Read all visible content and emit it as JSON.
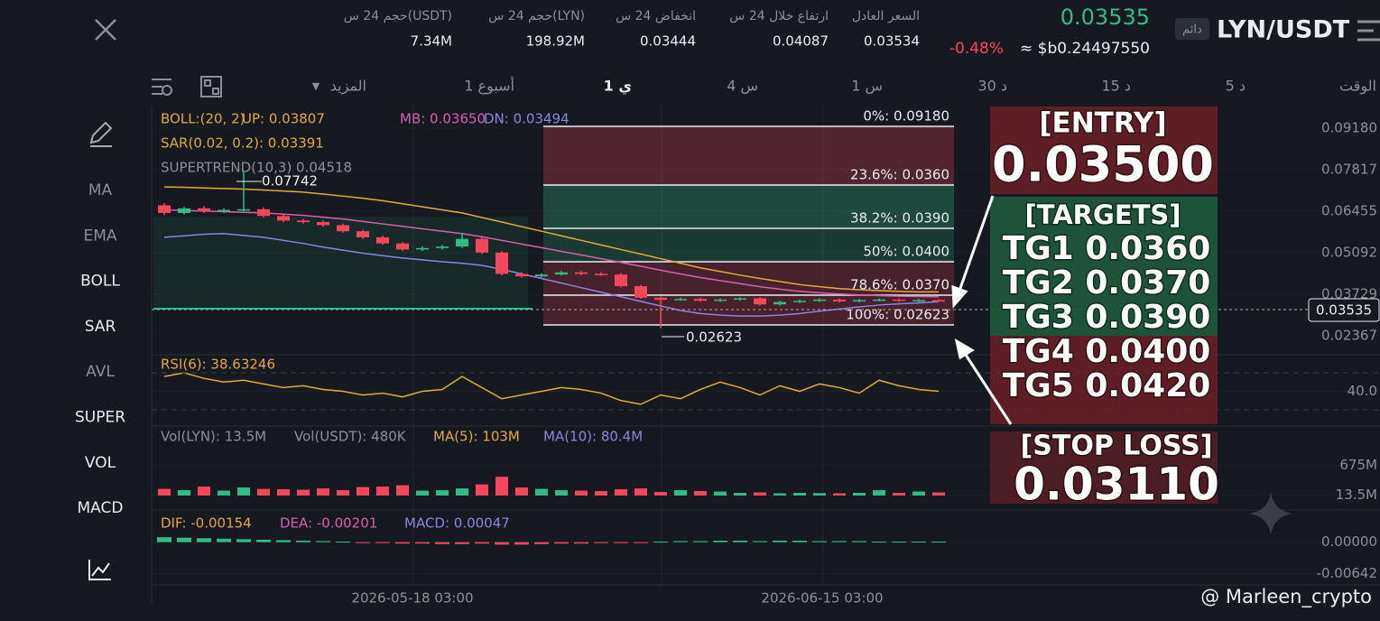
{
  "header": {
    "pair": "LYN/USDT",
    "tag": "دائم",
    "price": "0.03535",
    "change": "-0.48%",
    "usd": "≈ $b0.24497550",
    "stats": [
      {
        "label": "السعر العادل",
        "value": "0.03534"
      },
      {
        "label": "ارتفاع خلال 24 س",
        "value": "0.04087"
      },
      {
        "label": "انخفاض 24 س",
        "value": "0.03444"
      },
      {
        "label": "حجم 24 س(LYN)",
        "value": "198.92M"
      },
      {
        "label": "حجم 24 س(USDT)",
        "value": "7.34M"
      }
    ]
  },
  "timeframes": [
    "الوقت",
    "5 د",
    "15 د",
    "30 د",
    "1 س",
    "4 س",
    "1 ي",
    "1 أسبوع",
    "المزيد"
  ],
  "sidebar": [
    "MA",
    "EMA",
    "BOLL",
    "SAR",
    "AVL",
    "SUPER",
    "VOL",
    "MACD"
  ],
  "chart_data": {
    "type": "candlestick",
    "legend": {
      "boll": "BOLL:(20, 2)",
      "up": "UP: 0.03807",
      "mb": "MB: 0.03650",
      "dn": "DN: 0.03494",
      "sar": "SAR(0.02, 0.2): 0.03391",
      "supertrend": "SUPERTREND(10,3) 0.04518"
    },
    "up_color": "#2ebd85",
    "down_color": "#f6465d",
    "open": [
      0.0665,
      0.064,
      0.0655,
      0.0645,
      0.065,
      0.0652,
      0.063,
      0.0615,
      0.061,
      0.06,
      0.058,
      0.056,
      0.054,
      0.052,
      0.0525,
      0.053,
      0.0555,
      0.051,
      0.044,
      0.0432,
      0.0438,
      0.0445,
      0.044,
      0.0438,
      0.04,
      0.0362,
      0.0355,
      0.0358,
      0.0352,
      0.0356,
      0.036,
      0.034,
      0.0348,
      0.0352,
      0.0356,
      0.035,
      0.0354,
      0.0356,
      0.0352,
      0.0354
    ],
    "high": [
      0.0672,
      0.066,
      0.0662,
      0.0655,
      0.0774,
      0.0658,
      0.0635,
      0.062,
      0.0615,
      0.0605,
      0.0585,
      0.0565,
      0.0545,
      0.053,
      0.0535,
      0.0575,
      0.056,
      0.0515,
      0.0445,
      0.0442,
      0.045,
      0.045,
      0.0445,
      0.0442,
      0.0404,
      0.0366,
      0.0362,
      0.0362,
      0.036,
      0.0364,
      0.0364,
      0.0352,
      0.0356,
      0.036,
      0.036,
      0.0358,
      0.036,
      0.036,
      0.0358,
      0.0358
    ],
    "low": [
      0.0632,
      0.0635,
      0.064,
      0.064,
      0.0645,
      0.0625,
      0.061,
      0.0605,
      0.0595,
      0.0575,
      0.0555,
      0.0535,
      0.0515,
      0.0515,
      0.052,
      0.0525,
      0.0505,
      0.0435,
      0.0428,
      0.0428,
      0.0435,
      0.0436,
      0.0434,
      0.0396,
      0.0358,
      0.0262,
      0.0352,
      0.0348,
      0.0348,
      0.0352,
      0.0336,
      0.0336,
      0.0344,
      0.0348,
      0.0346,
      0.0346,
      0.035,
      0.0348,
      0.0348,
      0.0349
    ],
    "close": [
      0.064,
      0.0655,
      0.0645,
      0.065,
      0.0652,
      0.063,
      0.0615,
      0.061,
      0.06,
      0.058,
      0.056,
      0.054,
      0.052,
      0.0525,
      0.053,
      0.0555,
      0.051,
      0.044,
      0.0432,
      0.0438,
      0.0445,
      0.044,
      0.0438,
      0.04,
      0.0362,
      0.0355,
      0.0358,
      0.0352,
      0.0356,
      0.036,
      0.034,
      0.0348,
      0.0352,
      0.0356,
      0.035,
      0.0354,
      0.0356,
      0.0352,
      0.0354,
      0.0353
    ],
    "boll": {
      "up_color": "#e0a93a",
      "mid_color": "#d65fb0",
      "dn_color": "#8a85e0",
      "up": [
        0.0725,
        0.0724,
        0.0722,
        0.072,
        0.0718,
        0.0715,
        0.0712,
        0.0708,
        0.0702,
        0.0695,
        0.0688,
        0.068,
        0.067,
        0.066,
        0.065,
        0.064,
        0.0625,
        0.061,
        0.0595,
        0.058,
        0.0565,
        0.055,
        0.0535,
        0.052,
        0.0505,
        0.049,
        0.0475,
        0.046,
        0.0448,
        0.0436,
        0.0425,
        0.0415,
        0.0405,
        0.0398,
        0.0392,
        0.0388,
        0.0385,
        0.0383,
        0.0381,
        0.0381
      ],
      "mid": [
        0.065,
        0.0648,
        0.0646,
        0.0644,
        0.0642,
        0.064,
        0.0636,
        0.0632,
        0.0626,
        0.062,
        0.0612,
        0.0604,
        0.0596,
        0.0588,
        0.058,
        0.0572,
        0.0562,
        0.055,
        0.0538,
        0.0526,
        0.0514,
        0.0502,
        0.049,
        0.0478,
        0.0465,
        0.0452,
        0.044,
        0.0428,
        0.0418,
        0.0408,
        0.0398,
        0.039,
        0.0383,
        0.0378,
        0.0374,
        0.0371,
        0.0369,
        0.0367,
        0.0366,
        0.0365
      ],
      "dn": [
        0.056,
        0.0565,
        0.057,
        0.0572,
        0.0566,
        0.056,
        0.055,
        0.054,
        0.0528,
        0.0518,
        0.0508,
        0.05,
        0.0492,
        0.0486,
        0.048,
        0.0475,
        0.0468,
        0.0455,
        0.044,
        0.0425,
        0.041,
        0.0395,
        0.038,
        0.0365,
        0.035,
        0.0335,
        0.032,
        0.031,
        0.0305,
        0.0302,
        0.0302,
        0.0305,
        0.031,
        0.0318,
        0.0325,
        0.0332,
        0.0338,
        0.0342,
        0.0345,
        0.0349
      ]
    },
    "ylim": [
      0.0178,
      0.0983
    ],
    "yticks": [
      {
        "value": 0.0918,
        "label": "0.09180"
      },
      {
        "value": 0.07817,
        "label": "0.07817"
      },
      {
        "value": 0.06455,
        "label": "0.06455"
      },
      {
        "value": 0.05092,
        "label": "0.05092"
      },
      {
        "value": 0.03729,
        "label": "0.03729"
      },
      {
        "value": 0.02367,
        "label": "0.02367"
      }
    ],
    "x_labels": [
      "2026-05-18 03:00",
      "2026-06-15 03:00"
    ],
    "annotations": {
      "high": "0.07742",
      "low": "0.02623",
      "last": "0.03535"
    },
    "fib": [
      "0%: 0.09180",
      "23.6%: 0.0360",
      "38.2%: 0.0390",
      "50%: 0.0400",
      "78.6%: 0.0370",
      "100%: 0.02623"
    ],
    "rsi": {
      "label": "RSI(6): 38.63246",
      "color": "#e0a93a",
      "ylim": [
        22.2,
        58.8
      ],
      "yticks": [
        {
          "value": 40,
          "label": "40.0"
        }
      ],
      "values": [
        48,
        50,
        47,
        45,
        46,
        44,
        42,
        43,
        41,
        40,
        38,
        39,
        37,
        40,
        41,
        48,
        42,
        36,
        38,
        40,
        42,
        41,
        39,
        35,
        33,
        38,
        36,
        41,
        45,
        42,
        38,
        43,
        40,
        44,
        42,
        39,
        46,
        43,
        41,
        40
      ]
    },
    "volume": {
      "labels": [
        "Vol(LYN): 13.5M",
        "Vol(USDT): 480K",
        "MA(5): 103M",
        "MA(10): 80.4M"
      ],
      "ylim": [
        0,
        950
      ],
      "yticks": [
        {
          "value": 675,
          "label": "675M"
        },
        {
          "value": 13.5,
          "label": "13.5M"
        }
      ],
      "values": [
        150,
        120,
        200,
        110,
        180,
        150,
        140,
        130,
        160,
        120,
        190,
        200,
        230,
        110,
        120,
        160,
        250,
        420,
        180,
        150,
        120,
        110,
        100,
        140,
        160,
        80,
        120,
        100,
        90,
        60,
        70,
        50,
        60,
        55,
        50,
        60,
        120,
        60,
        90,
        70
      ]
    },
    "macd": {
      "labels": [
        "DIF: -0.00154",
        "DEA: -0.00201",
        "MACD: 0.00047"
      ],
      "ylim": [
        -0.0085,
        0.0025
      ],
      "yticks": [
        {
          "value": 0,
          "label": "0.00000"
        },
        {
          "value": -0.00642,
          "label": "-0.00642"
        }
      ],
      "values": [
        0.001,
        0.0009,
        0.0008,
        0.0007,
        0.0006,
        0.0005,
        0.0004,
        0.0003,
        0.0002,
        0.0001,
        -0.0001,
        -0.0002,
        -0.0003,
        -0.0003,
        -0.0004,
        -0.0004,
        -0.0003,
        -0.0005,
        -0.0005,
        -0.0004,
        -0.0003,
        -0.0003,
        -0.0002,
        -0.0002,
        -0.0001,
        0.0001,
        0.0002,
        0.0002,
        0.0003,
        0.0003,
        0.0002,
        0.0003,
        0.0003,
        0.0002,
        0.0002,
        0.0002,
        0.0001,
        0.0001,
        0.0001,
        0.0001
      ]
    }
  },
  "signal": {
    "entry_label": "[ENTRY]",
    "entry": "0.03500",
    "targets_label": "[TARGETS]",
    "targets": [
      "TG1 0.0360",
      "TG2 0.0370",
      "TG3 0.0390",
      "TG4 0.0400",
      "TG5 0.0420"
    ],
    "stop_label": "[STOP LOSS]",
    "stop": "0.03110"
  },
  "watermark": "@ Marleen_crypto"
}
